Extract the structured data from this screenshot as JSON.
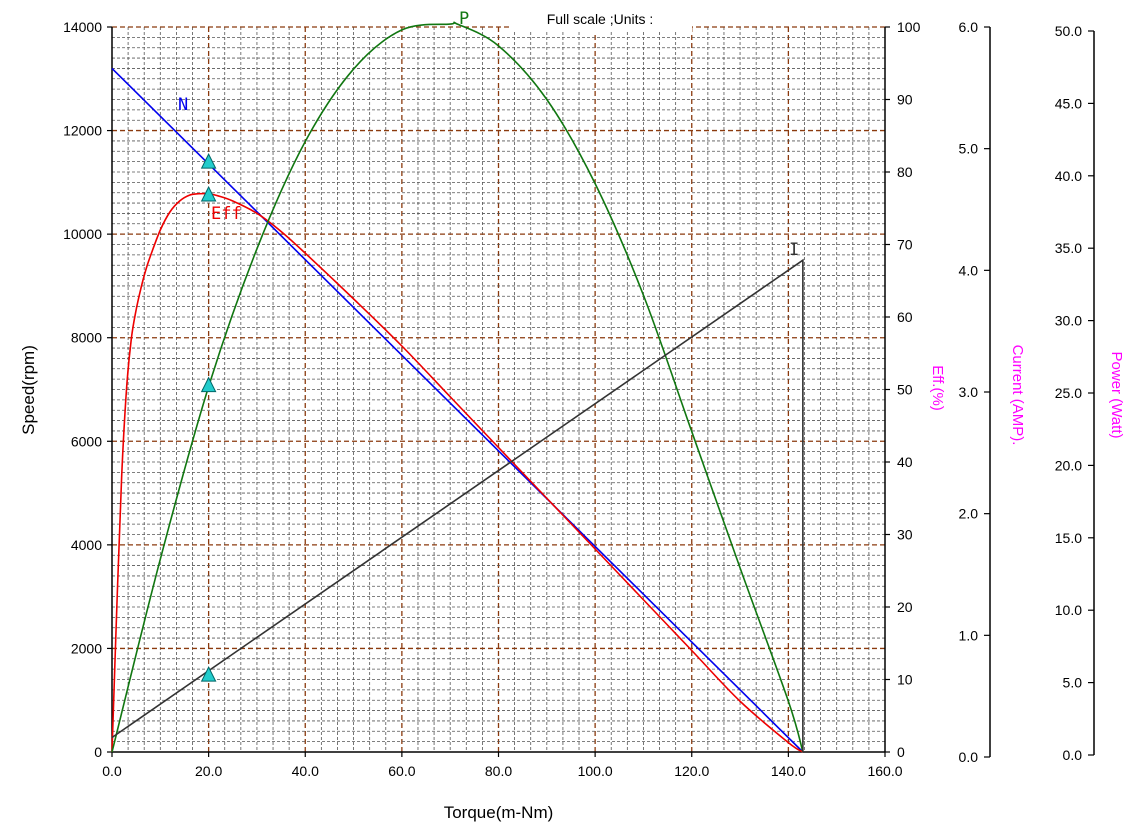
{
  "chart_data": {
    "type": "line",
    "title": "Full scale ;Units :",
    "xlabel": "Torque(m-Nm)",
    "x_ticks": [
      "0.0",
      "20.0",
      "40.0",
      "60.0",
      "80.0",
      "100.0",
      "120.0",
      "140.0",
      "160.0"
    ],
    "xlim": [
      0,
      160
    ],
    "axes": {
      "speed": {
        "label": "Speed(rpm)",
        "lim": [
          0,
          14000
        ],
        "ticks": [
          "0",
          "2000",
          "4000",
          "6000",
          "8000",
          "10000",
          "12000",
          "14000"
        ]
      },
      "eff": {
        "label": "Eff.(%)",
        "lim": [
          0,
          100
        ],
        "ticks": [
          "0",
          "10",
          "20",
          "30",
          "40",
          "50",
          "60",
          "70",
          "80",
          "90",
          "100"
        ]
      },
      "current": {
        "label": "Current (AMP).",
        "lim": [
          0,
          6
        ],
        "ticks": [
          "0.0",
          "1.0",
          "2.0",
          "3.0",
          "4.0",
          "5.0",
          "6.0"
        ]
      },
      "power": {
        "label": "Power (Watt)",
        "lim": [
          0,
          50
        ],
        "ticks": [
          "0.0",
          "5.0",
          "10.0",
          "15.0",
          "20.0",
          "25.0",
          "30.0",
          "35.0",
          "40.0",
          "45.0",
          "50.0"
        ]
      }
    },
    "series": [
      {
        "name": "N",
        "axis": "speed",
        "color": "#0000ee",
        "x": [
          0,
          143
        ],
        "y": [
          13200,
          0
        ]
      },
      {
        "name": "Eff",
        "axis": "eff",
        "color": "#ee0000",
        "x": [
          0,
          1,
          2,
          3,
          4,
          5,
          6,
          7,
          8,
          10,
          12,
          14,
          16,
          18,
          20,
          22,
          25,
          30,
          35,
          40,
          50,
          60,
          70,
          80,
          90,
          100,
          110,
          120,
          130,
          140,
          143
        ],
        "y": [
          0,
          20,
          38,
          50,
          57,
          61,
          64,
          66.5,
          68.5,
          72,
          74.5,
          76,
          76.8,
          77,
          77,
          76.7,
          76,
          74.3,
          71.8,
          68.8,
          62.5,
          56,
          49,
          42,
          35,
          28,
          21,
          14,
          7,
          1.3,
          0
        ]
      },
      {
        "name": "P",
        "axis": "power",
        "color": "#117711",
        "x": [
          0,
          10,
          20,
          30,
          40,
          50,
          60,
          70,
          71.5,
          80,
          90,
          100,
          110,
          120,
          130,
          140,
          143
        ],
        "y": [
          0,
          13.3,
          25.2,
          34.7,
          42.1,
          47.1,
          49.8,
          50.2,
          50.2,
          48.7,
          45.0,
          39.2,
          31.5,
          22.1,
          12.7,
          3.5,
          0
        ]
      },
      {
        "name": "I",
        "axis": "current",
        "color": "#333333",
        "x": [
          0,
          143,
          143
        ],
        "y": [
          0.12,
          4.07,
          0
        ]
      }
    ],
    "markers": {
      "color": "#22cccc",
      "x": 20,
      "points": [
        {
          "axis": "speed",
          "y": 11400
        },
        {
          "axis": "eff",
          "y": 76.9
        },
        {
          "axis": "power",
          "y": 25.3
        },
        {
          "axis": "current",
          "y": 0.64
        }
      ]
    },
    "grid": true,
    "grid_color": "#8b3a0e"
  }
}
